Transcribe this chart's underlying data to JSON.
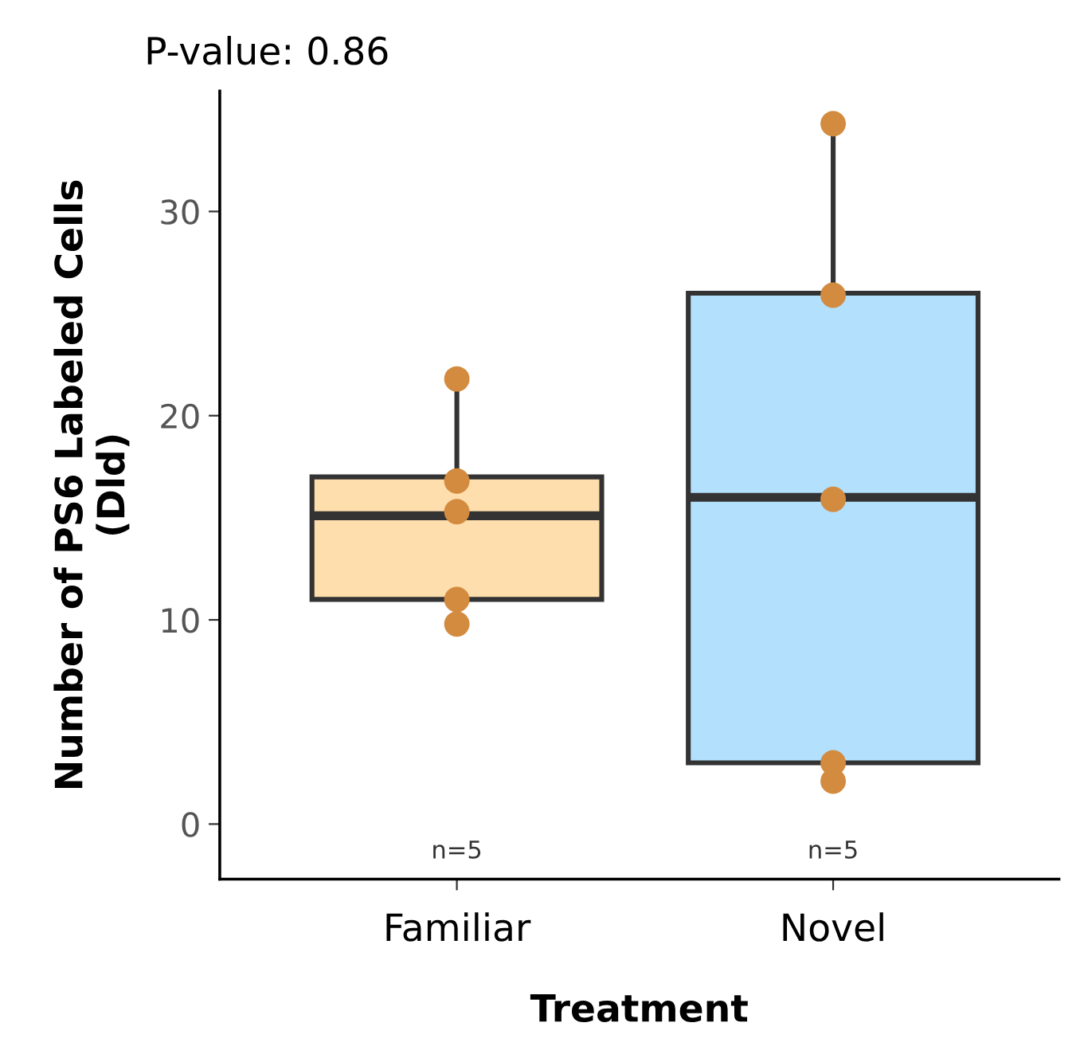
{
  "chart_data": {
    "type": "box",
    "title": "P-value: 0.86",
    "xlabel": "Treatment",
    "ylabel": "Number of PS6 Labeled Cells\n(Dld)",
    "categories": [
      "Familiar",
      "Novel"
    ],
    "colors": [
      "#fedeac",
      "#b3e0fd"
    ],
    "boxes": [
      {
        "low": 9.8,
        "q1": 11.0,
        "median": 15.1,
        "q3": 17.0,
        "high": 21.8
      },
      {
        "low": 2.1,
        "q1": 3.0,
        "median": 16.0,
        "q3": 26.0,
        "high": 34.3
      }
    ],
    "series": [
      {
        "type": "scatter",
        "color": "#d38b40",
        "x": [
          "Familiar",
          "Familiar",
          "Familiar",
          "Familiar",
          "Familiar"
        ],
        "values": [
          9.8,
          11.0,
          15.3,
          16.8,
          21.8
        ]
      },
      {
        "type": "scatter",
        "color": "#d38b40",
        "x": [
          "Novel",
          "Novel",
          "Novel",
          "Novel",
          "Novel"
        ],
        "values": [
          2.1,
          3.0,
          15.9,
          25.9,
          34.3
        ]
      }
    ],
    "annotations": [
      "n=5",
      "n=5"
    ],
    "ylim": [
      -2.7,
      35.9
    ],
    "yticks": [
      0,
      10,
      20,
      30
    ],
    "grid": false,
    "marker": "circle"
  }
}
